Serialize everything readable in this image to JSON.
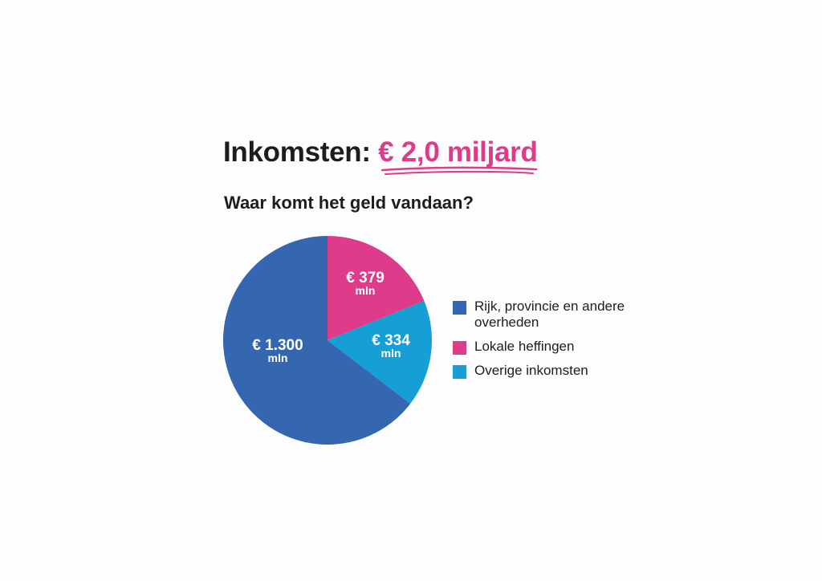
{
  "header": {
    "title_prefix": "Inkomsten:",
    "title_amount": "€ 2,0 miljard",
    "subtitle": "Waar komt het geld vandaan?"
  },
  "colors": {
    "accent": "#de3b8a",
    "rijk": "#3566b0",
    "lokaal": "#de3b8a",
    "overig": "#159fd5"
  },
  "chart_data": {
    "type": "pie",
    "title": "Inkomsten: € 2,0 miljard",
    "subtitle": "Waar komt het geld vandaan?",
    "unit": "mln",
    "legend_position": "right",
    "slices": [
      {
        "name": "Lokale heffingen",
        "value": 379,
        "label": "€ 379",
        "unit_label": "mln",
        "color": "#de3b8a"
      },
      {
        "name": "Overige inkomsten",
        "value": 334,
        "label": "€ 334",
        "unit_label": "mln",
        "color": "#159fd5"
      },
      {
        "name": "Rijk, provincie en andere overheden",
        "value": 1300,
        "label": "€ 1.300",
        "unit_label": "mln",
        "color": "#3566b0"
      }
    ]
  },
  "legend": {
    "items": [
      {
        "label": "Rijk, provincie en andere overheden",
        "color": "#3566b0"
      },
      {
        "label": "Lokale heffingen",
        "color": "#de3b8a"
      },
      {
        "label": "Overige inkomsten",
        "color": "#159fd5"
      }
    ]
  }
}
